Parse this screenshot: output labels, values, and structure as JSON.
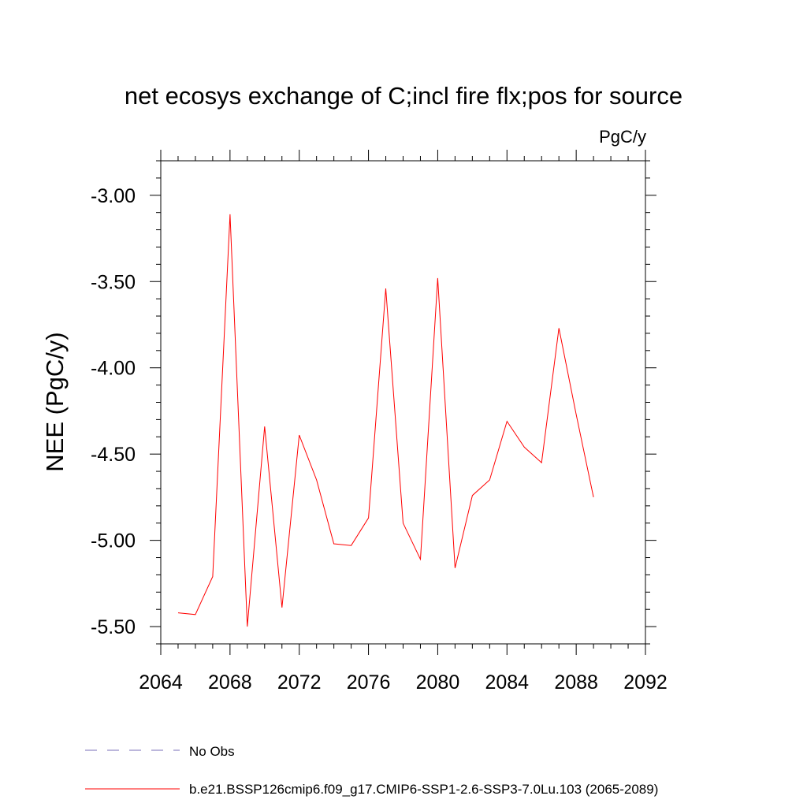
{
  "chart_data": {
    "type": "line",
    "title": "net ecosys exchange of C;incl fire flx;pos for source",
    "units": "PgC/y",
    "xlabel": "",
    "ylabel": "NEE  (PgC/y)",
    "xlim": [
      2064,
      2092
    ],
    "ylim": [
      -5.6,
      -2.8
    ],
    "xticks": [
      2064,
      2068,
      2072,
      2076,
      2080,
      2084,
      2088,
      2092
    ],
    "xtick_labels": [
      "2064",
      "2068",
      "2072",
      "2076",
      "2080",
      "2084",
      "2088",
      "2092"
    ],
    "yticks": [
      -3.0,
      -3.5,
      -4.0,
      -4.5,
      -5.0,
      -5.5
    ],
    "ytick_labels": [
      "-3.00",
      "-3.50",
      "-4.00",
      "-4.50",
      "-5.00",
      "-5.50"
    ],
    "grid": false,
    "series": [
      {
        "name": "b.e21.BSSP126cmip6.f09_g17.CMIP6-SSP1-2.6-SSP3-7.0Lu.103 (2065-2089)",
        "color": "#ff0000",
        "x": [
          2065,
          2066,
          2067,
          2068,
          2069,
          2070,
          2071,
          2072,
          2073,
          2074,
          2075,
          2076,
          2077,
          2078,
          2079,
          2080,
          2081,
          2082,
          2083,
          2084,
          2085,
          2086,
          2087,
          2088,
          2089
        ],
        "values": [
          -5.42,
          -5.43,
          -5.21,
          -3.11,
          -5.5,
          -4.34,
          -5.39,
          -4.39,
          -4.65,
          -5.02,
          -5.03,
          -4.87,
          -3.54,
          -4.9,
          -5.11,
          -3.48,
          -5.16,
          -4.74,
          -4.65,
          -4.31,
          -4.46,
          -4.55,
          -3.77,
          -4.27,
          -4.75
        ]
      }
    ],
    "legend": [
      {
        "label": "No Obs",
        "style": "dashed",
        "color": "#7a6fb8"
      },
      {
        "label": "b.e21.BSSP126cmip6.f09_g17.CMIP6-SSP1-2.6-SSP3-7.0Lu.103 (2065-2089)",
        "style": "solid",
        "color": "#ff0000"
      }
    ],
    "legend_position": "bottom-left"
  }
}
